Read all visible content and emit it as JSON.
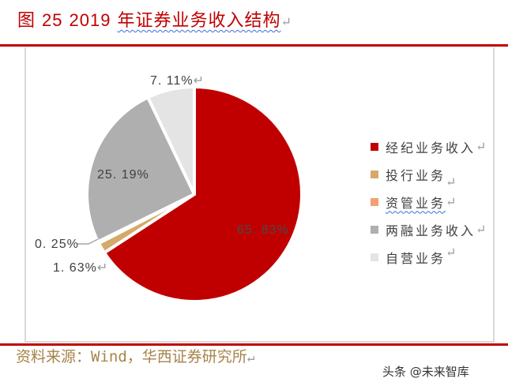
{
  "title": {
    "prefix": "图",
    "number": "25",
    "year": "2019",
    "text": "年证券业务收入结构",
    "return_mark": "↵"
  },
  "chart_data": {
    "type": "pie",
    "title": "图 25 2019 年证券业务收入结构",
    "categories": [
      "经纪业务收入",
      "投行业务",
      "资管业务",
      "两融业务收入",
      "自营业务"
    ],
    "values": [
      65.83,
      1.63,
      0.25,
      25.19,
      7.11
    ],
    "unit": "%",
    "colors": [
      "#c00000",
      "#d4a96a",
      "#f4a070",
      "#afafaf",
      "#e4e4e4"
    ],
    "data_labels": [
      "65.83%",
      "1.63%",
      "0.25%",
      "25.19%",
      "7.11%"
    ],
    "legend_position": "right",
    "start_angle_deg": 0,
    "direction": "clockwise"
  },
  "labels": {
    "brokerage": "65. 83%",
    "ib": "1. 63%",
    "am": "0. 25%",
    "margin": "25. 19%",
    "prop": "7. 11%"
  },
  "legend": [
    {
      "label": "经纪业务收入",
      "color": "#c00000"
    },
    {
      "label": "投行业务",
      "color": "#d4a96a"
    },
    {
      "label": "资管业务",
      "color": "#f4a070"
    },
    {
      "label": "两融业务收入",
      "color": "#afafaf"
    },
    {
      "label": "自营业务",
      "color": "#e4e4e4"
    }
  ],
  "source": "资料来源：Wind，华西证券研究所",
  "watermark": "头条 @未来智库",
  "ret": "↵"
}
